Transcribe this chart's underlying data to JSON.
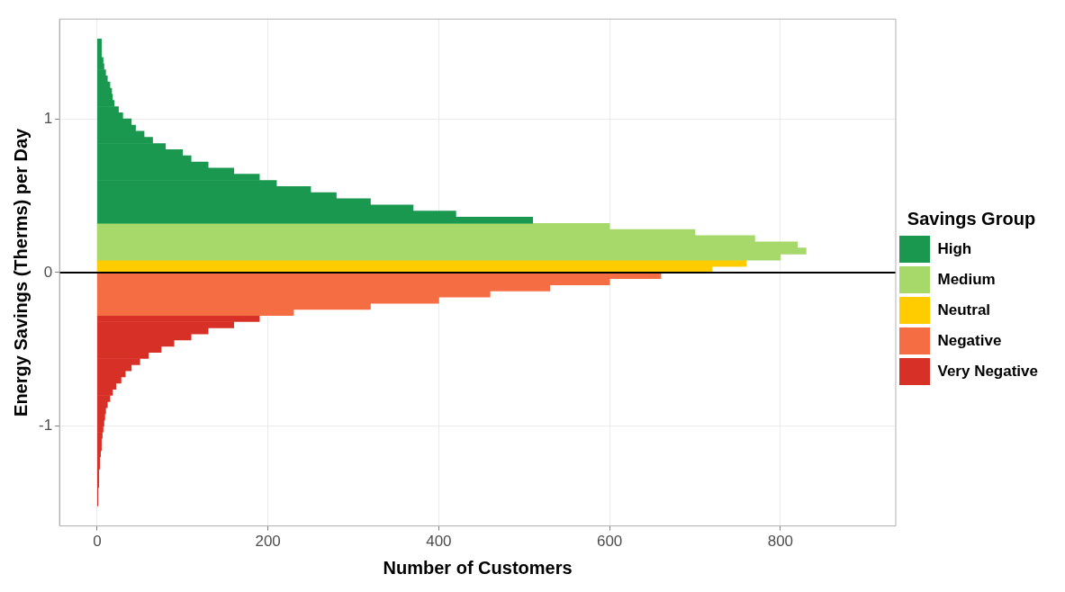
{
  "chart_data": {
    "type": "histogram",
    "orientation": "horizontal",
    "xlabel": "Number of Customers",
    "ylabel": "Energy Savings (Therms) per Day",
    "legend_title": "Savings Group",
    "legend": "right",
    "grid": true,
    "xlim": [
      -44,
      935
    ],
    "xticks": [
      0,
      200,
      400,
      600,
      800
    ],
    "ylim": [
      -1.65,
      1.65
    ],
    "yticks": [
      -1,
      0,
      1
    ],
    "bins": [
      -1.52,
      -1.48,
      -1.44,
      -1.4,
      -1.36,
      -1.32,
      -1.28,
      -1.24,
      -1.2,
      -1.16,
      -1.12,
      -1.08,
      -1.04,
      -1,
      -0.96,
      -0.92,
      -0.88,
      -0.84,
      -0.8,
      -0.76,
      -0.72,
      -0.68,
      -0.64,
      -0.6,
      -0.56,
      -0.52,
      -0.48,
      -0.44,
      -0.4,
      -0.36,
      -0.32,
      -0.28,
      -0.24,
      -0.2,
      -0.16,
      -0.12,
      -0.08,
      -0.04,
      0,
      0.04,
      0.08,
      0.12,
      0.16,
      0.2,
      0.24,
      0.28,
      0.32,
      0.36,
      0.4,
      0.44,
      0.48,
      0.52,
      0.56,
      0.6,
      0.64,
      0.68,
      0.72,
      0.76,
      0.8,
      0.84,
      0.88,
      0.92,
      0.96,
      1,
      1.04,
      1.08,
      1.12,
      1.16,
      1.2,
      1.24,
      1.28,
      1.32,
      1.36,
      1.4,
      1.44,
      1.48,
      1.52
    ],
    "series": [
      {
        "name": "High",
        "color": "#1a9850",
        "values": [
          null,
          null,
          null,
          null,
          null,
          null,
          null,
          null,
          null,
          null,
          null,
          null,
          null,
          null,
          null,
          null,
          null,
          null,
          null,
          null,
          null,
          null,
          null,
          null,
          null,
          null,
          null,
          null,
          null,
          null,
          null,
          null,
          null,
          null,
          null,
          null,
          null,
          null,
          null,
          null,
          null,
          null,
          null,
          null,
          null,
          null,
          510,
          420,
          370,
          320,
          280,
          250,
          210,
          190,
          160,
          130,
          110,
          100,
          80,
          65,
          55,
          45,
          40,
          30,
          25,
          20,
          18,
          17,
          15,
          12,
          10,
          8,
          7,
          5,
          5,
          5
        ]
      },
      {
        "name": "Medium",
        "color": "#a6d96a",
        "values": [
          null,
          null,
          null,
          null,
          null,
          null,
          null,
          null,
          null,
          null,
          null,
          null,
          null,
          null,
          null,
          null,
          null,
          null,
          null,
          null,
          null,
          null,
          null,
          null,
          null,
          null,
          null,
          null,
          null,
          null,
          null,
          null,
          null,
          null,
          null,
          null,
          null,
          null,
          null,
          null,
          800,
          830,
          820,
          770,
          700,
          600,
          null,
          null,
          null,
          null,
          null,
          null,
          null,
          null,
          null,
          null,
          null,
          null,
          null,
          null,
          null,
          null,
          null,
          null,
          null,
          null,
          null,
          null,
          null,
          null,
          null,
          null,
          null,
          null,
          null,
          null
        ]
      },
      {
        "name": "Neutral",
        "color": "#ffcc00",
        "values": [
          null,
          null,
          null,
          null,
          null,
          null,
          null,
          null,
          null,
          null,
          null,
          null,
          null,
          null,
          null,
          null,
          null,
          null,
          null,
          null,
          null,
          null,
          null,
          null,
          null,
          null,
          null,
          null,
          null,
          null,
          null,
          null,
          null,
          null,
          null,
          null,
          null,
          null,
          720,
          760,
          null,
          null,
          null,
          null,
          null,
          null,
          null,
          null,
          null,
          null,
          null,
          null,
          null,
          null,
          null,
          null,
          null,
          null,
          null,
          null,
          null,
          null,
          null,
          null,
          null,
          null,
          null,
          null,
          null,
          null,
          null,
          null,
          null,
          null,
          null,
          null
        ]
      },
      {
        "name": "Negative",
        "color": "#f46d43",
        "values": [
          null,
          null,
          null,
          null,
          null,
          null,
          null,
          null,
          null,
          null,
          null,
          null,
          null,
          null,
          null,
          null,
          null,
          null,
          null,
          null,
          null,
          null,
          null,
          null,
          null,
          null,
          null,
          null,
          null,
          null,
          null,
          230,
          320,
          400,
          460,
          530,
          600,
          660,
          null,
          null,
          null,
          null,
          null,
          null,
          null,
          null,
          null,
          null,
          null,
          null,
          null,
          null,
          null,
          null,
          null,
          null,
          null,
          null,
          null,
          null,
          null,
          null,
          null,
          null,
          null,
          null,
          null,
          null,
          null,
          null,
          null,
          null,
          null,
          null,
          null,
          null
        ]
      },
      {
        "name": "Very Negative",
        "color": "#d73027",
        "values": [
          1,
          1,
          1,
          2,
          2,
          2,
          3,
          3,
          4,
          5,
          5,
          6,
          7,
          8,
          9,
          10,
          12,
          15,
          18,
          22,
          28,
          33,
          40,
          50,
          60,
          75,
          90,
          110,
          130,
          160,
          190,
          null,
          null,
          null,
          null,
          null,
          null,
          null,
          null,
          null,
          null,
          null,
          null,
          null,
          null,
          null,
          null,
          null,
          null,
          null,
          null,
          null,
          null,
          null,
          null,
          null,
          null,
          null,
          null,
          null,
          null,
          null,
          null,
          null,
          null,
          null,
          null,
          null,
          null,
          null,
          null,
          null,
          null,
          null,
          null,
          null
        ]
      }
    ],
    "ref_lines": [
      {
        "axis": "y",
        "value": 0,
        "color": "#000000"
      }
    ]
  }
}
